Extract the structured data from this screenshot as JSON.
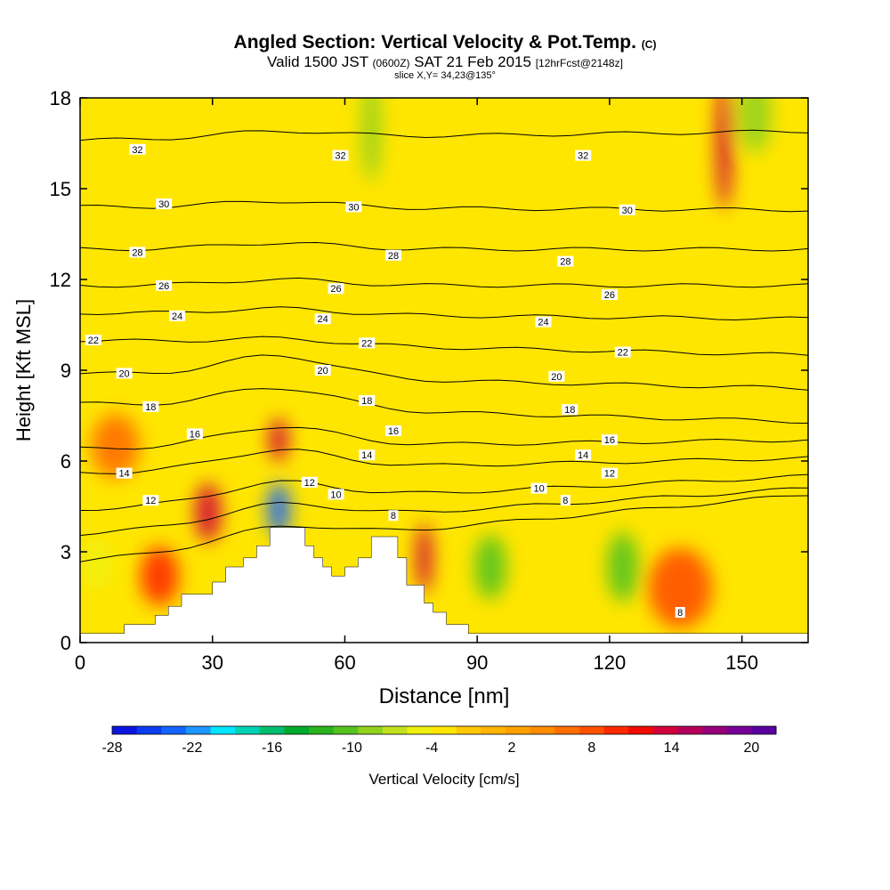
{
  "title": {
    "main": "Angled Section: Vertical Velocity & Pot.Temp.",
    "main_tag": "(C)",
    "valid_prefix": "Valid 1500 JST",
    "valid_zone": "(0600Z)",
    "valid_date": "SAT 21 Feb 2015",
    "valid_fcst": "[12hrFcst@2148z]",
    "slice": "slice X,Y= 34,23@135°"
  },
  "colors": {
    "background_field": "#ffe600",
    "terrain": "#ffffff",
    "contour": "#000000",
    "frame": "#000000"
  },
  "chart_data": {
    "type": "heatmap",
    "xlabel": "Distance [nm]",
    "ylabel": "Height [Kft MSL]",
    "xlim": [
      0,
      165
    ],
    "ylim": [
      0,
      18
    ],
    "x_ticks": [
      "0",
      "30",
      "60",
      "90",
      "120",
      "150"
    ],
    "y_ticks": [
      "0",
      "3",
      "6",
      "9",
      "12",
      "15",
      "18"
    ],
    "colorbar": {
      "label": "Vertical Velocity [cm/s]",
      "tick_labels": [
        "-28",
        "-22",
        "-16",
        "-10",
        "-4",
        "2",
        "8",
        "14",
        "20"
      ],
      "colors": [
        "#0a14e0",
        "#0a3cf0",
        "#1464ff",
        "#1e96ff",
        "#00e6ff",
        "#00d2b4",
        "#00be6e",
        "#00aa2d",
        "#28b41e",
        "#55c31e",
        "#91d21e",
        "#c3e11e",
        "#f0f00f",
        "#ffe600",
        "#ffc800",
        "#ffb400",
        "#ffa000",
        "#ff8c00",
        "#ff6e00",
        "#ff5000",
        "#ff2800",
        "#f00a00",
        "#d2003c",
        "#b4005a",
        "#960078",
        "#780096",
        "#5a00a0"
      ]
    },
    "terrain_profile": [
      [
        0,
        0.3
      ],
      [
        10,
        0.3
      ],
      [
        10,
        0.6
      ],
      [
        17,
        0.6
      ],
      [
        17,
        0.9
      ],
      [
        20,
        0.9
      ],
      [
        20,
        1.2
      ],
      [
        23,
        1.2
      ],
      [
        23,
        1.6
      ],
      [
        30,
        1.6
      ],
      [
        30,
        2.0
      ],
      [
        33,
        2.0
      ],
      [
        33,
        2.5
      ],
      [
        37,
        2.5
      ],
      [
        37,
        2.8
      ],
      [
        40,
        2.8
      ],
      [
        40,
        3.2
      ],
      [
        43,
        3.2
      ],
      [
        43,
        3.8
      ],
      [
        51,
        3.8
      ],
      [
        51,
        3.2
      ],
      [
        53,
        3.2
      ],
      [
        53,
        2.8
      ],
      [
        55,
        2.8
      ],
      [
        55,
        2.5
      ],
      [
        57,
        2.5
      ],
      [
        57,
        2.2
      ],
      [
        60,
        2.2
      ],
      [
        60,
        2.5
      ],
      [
        63,
        2.5
      ],
      [
        63,
        2.8
      ],
      [
        66,
        2.8
      ],
      [
        66,
        3.5
      ],
      [
        72,
        3.5
      ],
      [
        72,
        2.8
      ],
      [
        74,
        2.8
      ],
      [
        74,
        1.9
      ],
      [
        78,
        1.9
      ],
      [
        78,
        1.3
      ],
      [
        80,
        1.3
      ],
      [
        80,
        1.0
      ],
      [
        83,
        1.0
      ],
      [
        83,
        0.6
      ],
      [
        88,
        0.6
      ],
      [
        88,
        0.3
      ],
      [
        165,
        0.3
      ]
    ],
    "theta_contours": [
      {
        "label": "32",
        "y_left": 16.6,
        "y_right": 16.9
      },
      {
        "label": "30",
        "y_left": 14.4,
        "y_right": 14.3
      },
      {
        "label": "28",
        "y_left": 13.0,
        "y_right": 13.0
      },
      {
        "label": "26",
        "y_left": 11.8,
        "y_right": 11.8
      },
      {
        "label": "24",
        "y_left": 10.9,
        "y_right": 10.7
      },
      {
        "label": "22",
        "y_left": 10.0,
        "y_right": 9.5
      },
      {
        "label": "20",
        "y_left": 8.9,
        "y_right": 8.4
      },
      {
        "label": "18",
        "y_left": 7.9,
        "y_right": 7.3
      },
      {
        "label": "16",
        "y_left": 6.4,
        "y_right": 6.7
      },
      {
        "label": "14",
        "y_left": 5.6,
        "y_right": 6.1
      },
      {
        "label": "12",
        "y_left": 4.4,
        "y_right": 5.5
      },
      {
        "label": "10",
        "y_left": 3.6,
        "y_right": 5.1
      },
      {
        "label": "8",
        "y_left": 2.7,
        "y_right": 4.9
      }
    ],
    "contour_labels": [
      {
        "text": "32",
        "x": 13,
        "y": 16.3
      },
      {
        "text": "32",
        "x": 59,
        "y": 16.1
      },
      {
        "text": "32",
        "x": 114,
        "y": 16.1
      },
      {
        "text": "30",
        "x": 19,
        "y": 14.5
      },
      {
        "text": "30",
        "x": 62,
        "y": 14.4
      },
      {
        "text": "30",
        "x": 124,
        "y": 14.3
      },
      {
        "text": "28",
        "x": 13,
        "y": 12.9
      },
      {
        "text": "28",
        "x": 71,
        "y": 12.8
      },
      {
        "text": "28",
        "x": 110,
        "y": 12.6
      },
      {
        "text": "26",
        "x": 19,
        "y": 11.8
      },
      {
        "text": "26",
        "x": 58,
        "y": 11.7
      },
      {
        "text": "26",
        "x": 120,
        "y": 11.5
      },
      {
        "text": "24",
        "x": 22,
        "y": 10.8
      },
      {
        "text": "24",
        "x": 55,
        "y": 10.7
      },
      {
        "text": "24",
        "x": 105,
        "y": 10.6
      },
      {
        "text": "22",
        "x": 3,
        "y": 10.0
      },
      {
        "text": "22",
        "x": 65,
        "y": 9.9
      },
      {
        "text": "22",
        "x": 123,
        "y": 9.6
      },
      {
        "text": "20",
        "x": 10,
        "y": 8.9
      },
      {
        "text": "20",
        "x": 55,
        "y": 9.0
      },
      {
        "text": "20",
        "x": 108,
        "y": 8.8
      },
      {
        "text": "18",
        "x": 16,
        "y": 7.8
      },
      {
        "text": "18",
        "x": 65,
        "y": 8.0
      },
      {
        "text": "18",
        "x": 111,
        "y": 7.7
      },
      {
        "text": "16",
        "x": 26,
        "y": 6.9
      },
      {
        "text": "16",
        "x": 71,
        "y": 7.0
      },
      {
        "text": "16",
        "x": 120,
        "y": 6.7
      },
      {
        "text": "14",
        "x": 10,
        "y": 5.6
      },
      {
        "text": "14",
        "x": 65,
        "y": 6.2
      },
      {
        "text": "14",
        "x": 114,
        "y": 6.2
      },
      {
        "text": "12",
        "x": 16,
        "y": 4.7
      },
      {
        "text": "12",
        "x": 52,
        "y": 5.3
      },
      {
        "text": "12",
        "x": 120,
        "y": 5.6
      },
      {
        "text": "10",
        "x": 58,
        "y": 4.9
      },
      {
        "text": "10",
        "x": 104,
        "y": 5.1
      },
      {
        "text": "8",
        "x": 71,
        "y": 4.2
      },
      {
        "text": "8",
        "x": 110,
        "y": 4.7
      },
      {
        "text": "8",
        "x": 136,
        "y": 1.0
      }
    ],
    "velocity_features": [
      {
        "x": 29,
        "y": 4.3,
        "w": 0.8,
        "h": 1.1,
        "value": 14
      },
      {
        "x": 45,
        "y": 6.7,
        "w": 0.6,
        "h": 0.8,
        "value": 14
      },
      {
        "x": 45,
        "y": 4.4,
        "w": 0.7,
        "h": 1.0,
        "value": -26
      },
      {
        "x": 78,
        "y": 2.8,
        "w": 0.5,
        "h": 1.3,
        "value": 14
      },
      {
        "x": 18,
        "y": 2.2,
        "w": 1.2,
        "h": 1.1,
        "value": 10
      },
      {
        "x": 146,
        "y": 16.5,
        "w": 0.5,
        "h": 2.5,
        "value": 14
      },
      {
        "x": 93,
        "y": 2.5,
        "w": 1.0,
        "h": 1.2,
        "value": -12
      },
      {
        "x": 123,
        "y": 2.5,
        "w": 1.0,
        "h": 1.3,
        "value": -12
      },
      {
        "x": 66,
        "y": 17.0,
        "w": 0.6,
        "h": 2.0,
        "value": -10
      },
      {
        "x": 153,
        "y": 17.5,
        "w": 1.0,
        "h": 1.5,
        "value": -10
      },
      {
        "x": 4,
        "y": 2.6,
        "w": 1.0,
        "h": 1.0,
        "value": -6
      },
      {
        "x": 160,
        "y": 2.0,
        "w": 1.2,
        "h": 1.0,
        "value": -4
      },
      {
        "x": 136,
        "y": 1.8,
        "w": 2.0,
        "h": 1.5,
        "value": 8
      },
      {
        "x": 8,
        "y": 6.5,
        "w": 1.5,
        "h": 1.2,
        "value": 6
      }
    ]
  }
}
